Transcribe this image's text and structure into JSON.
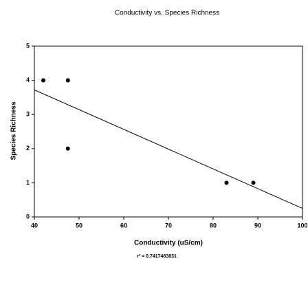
{
  "chart_data": {
    "type": "scatter",
    "title": "Conductivity vs. Species Richness",
    "x_label": "Conductivity (uS/cm)",
    "y_label": "Species Richness",
    "annotation": "r² = 0.7417483831",
    "x": [
      42,
      47.5,
      47.5,
      83,
      89
    ],
    "values": [
      4,
      4,
      2,
      1,
      1
    ],
    "color": "#000000",
    "trendline": {
      "x": [
        40,
        100
      ],
      "y": [
        3.72,
        0.25
      ]
    },
    "xlim": [
      40,
      100
    ],
    "xticks": [
      40,
      50,
      60,
      70,
      80,
      90,
      100
    ],
    "ylim": [
      0,
      5
    ],
    "yticks": [
      0,
      1,
      2,
      3,
      4,
      5
    ]
  }
}
